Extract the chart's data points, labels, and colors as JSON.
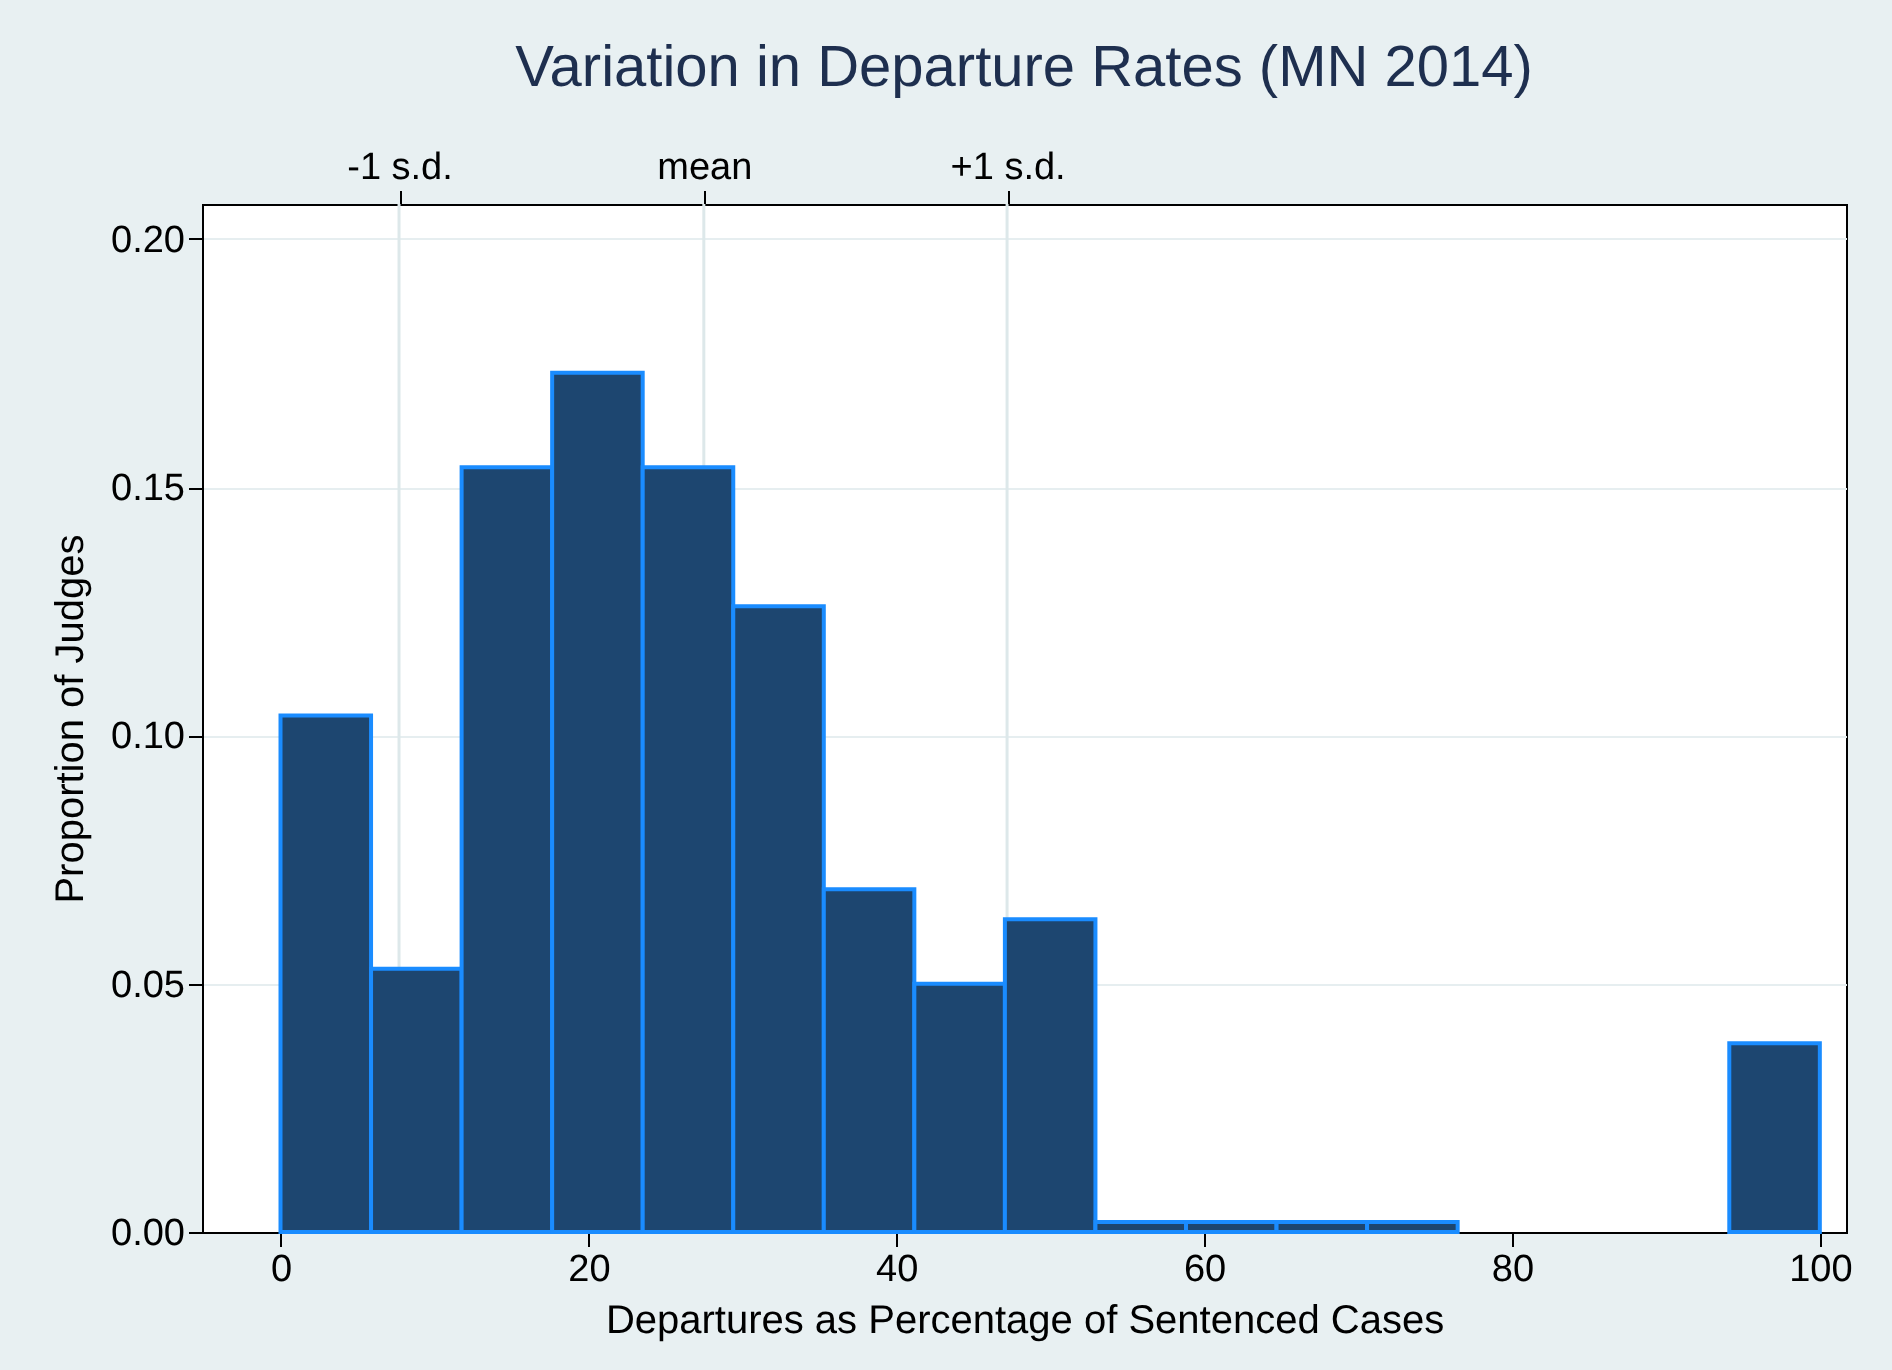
{
  "chart_data": {
    "type": "histogram",
    "title": "Variation in Departure Rates (MN 2014)",
    "xlabel": "Departures as Percentage of Sentenced Cases",
    "ylabel": "Proportion of Judges",
    "bins": [
      0,
      5.882,
      11.765,
      17.647,
      23.529,
      29.412,
      35.294,
      41.176,
      47.059,
      52.941,
      58.824,
      64.706,
      70.588,
      76.471,
      82.353,
      88.235,
      94.118,
      100
    ],
    "values": [
      0.104,
      0.053,
      0.154,
      0.173,
      0.154,
      0.126,
      0.069,
      0.05,
      0.063,
      0.002,
      0.002,
      0.002,
      0.002,
      0,
      0,
      0,
      0.038
    ],
    "color": "#1d4670",
    "xlim": [
      -5.1,
      101.7
    ],
    "xticks": [
      0,
      20,
      40,
      60,
      80,
      100
    ],
    "ylim": [
      0,
      0.207
    ],
    "yticks": [
      {
        "value": 0,
        "label": "0.00"
      },
      {
        "value": 0.05,
        "label": "0.05"
      },
      {
        "value": 0.1,
        "label": "0.10"
      },
      {
        "value": 0.15,
        "label": "0.15"
      },
      {
        "value": 0.2,
        "label": "0.20"
      }
    ],
    "ref_lines": [
      {
        "axis": "x",
        "value": 7.7,
        "label": "-1 s.d."
      },
      {
        "axis": "x",
        "value": 27.5,
        "label": "mean"
      },
      {
        "axis": "x",
        "value": 47.2,
        "label": "+1 s.d."
      }
    ],
    "grid": "y"
  }
}
